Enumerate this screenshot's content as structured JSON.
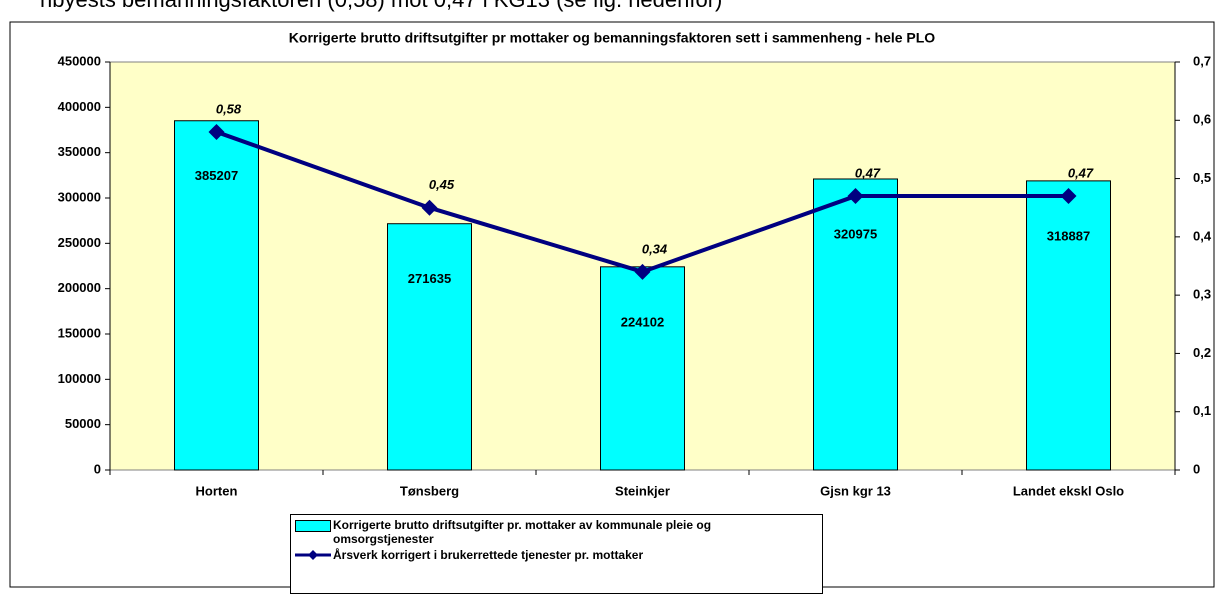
{
  "caption": "nbyests bemanningsfaktoren (0,58) mot 0,47 i KG13 (se fig. nedenfor)",
  "chart_data": {
    "type": "bar",
    "title": "Korrigerte brutto driftsutgifter pr mottaker og bemanningsfaktoren sett i sammenheng - hele PLO",
    "categories": [
      "Horten",
      "Tønsberg",
      "Steinkjer",
      "Gjsn kgr 13",
      "Landet ekskl Oslo"
    ],
    "series": [
      {
        "name": "Korrigerte brutto driftsutgifter pr. mottaker av kommunale pleie og omsorgstjenester",
        "color": "#00ffff",
        "values": [
          385207,
          271635,
          224102,
          320975,
          318887
        ]
      },
      {
        "name": "Årsverk korrigert i brukerrettede tjenester pr. mottaker",
        "color": "#000080",
        "axis": "y2",
        "values": [
          0.58,
          0.45,
          0.34,
          0.47,
          0.47
        ],
        "value_labels": [
          "0,58",
          "0,45",
          "0,34",
          "0,47",
          "0,47"
        ]
      }
    ],
    "ylim": [
      0,
      450000
    ],
    "yticks": [
      0,
      50000,
      100000,
      150000,
      200000,
      250000,
      300000,
      350000,
      400000,
      450000
    ],
    "y2lim": [
      0,
      0.7
    ],
    "y2ticks": [
      0,
      {
        "value": 0.1,
        "label": "0,1"
      },
      {
        "value": 0.2,
        "label": "0,2"
      },
      {
        "value": 0.3,
        "label": "0,3"
      },
      {
        "value": 0.4,
        "label": "0,4"
      },
      {
        "value": 0.5,
        "label": "0,5"
      },
      {
        "value": 0.6,
        "label": "0,6"
      },
      {
        "value": 0.7,
        "label": "0,7"
      }
    ],
    "plot_background": "#ffffc8",
    "grid": false
  }
}
